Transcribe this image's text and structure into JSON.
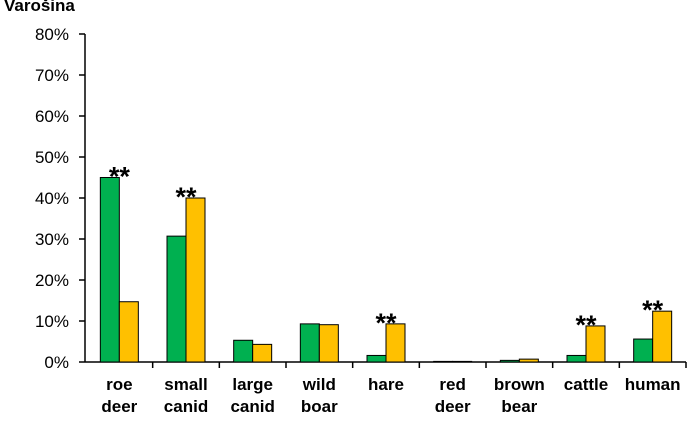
{
  "chart_data": {
    "type": "bar",
    "title": "Varošina",
    "xlabel": "",
    "ylabel": "",
    "ylim": [
      0,
      80
    ],
    "yticks": [
      0,
      10,
      20,
      30,
      40,
      50,
      60,
      70,
      80
    ],
    "ytick_labels": [
      "0%",
      "10%",
      "20%",
      "30%",
      "40%",
      "50%",
      "60%",
      "70%",
      "80%"
    ],
    "categories": [
      [
        "roe",
        "deer"
      ],
      [
        "small",
        "canid"
      ],
      [
        "large",
        "canid"
      ],
      [
        "wild",
        "boar"
      ],
      [
        "hare",
        ""
      ],
      [
        "red",
        "deer"
      ],
      [
        "brown",
        "bear"
      ],
      [
        "cattle",
        ""
      ],
      [
        "human",
        ""
      ]
    ],
    "series": [
      {
        "color": "#00B050",
        "values": [
          45.0,
          30.7,
          5.3,
          9.3,
          1.6,
          0.0,
          0.4,
          1.6,
          5.6
        ]
      },
      {
        "color": "#FFC000",
        "values": [
          14.7,
          40.0,
          4.3,
          9.1,
          9.3,
          0.1,
          0.7,
          8.8,
          12.4
        ]
      }
    ],
    "annotations": [
      "**",
      "**",
      "",
      "",
      "**",
      "",
      "",
      "**",
      "**"
    ],
    "grid": false,
    "legend": "none"
  }
}
